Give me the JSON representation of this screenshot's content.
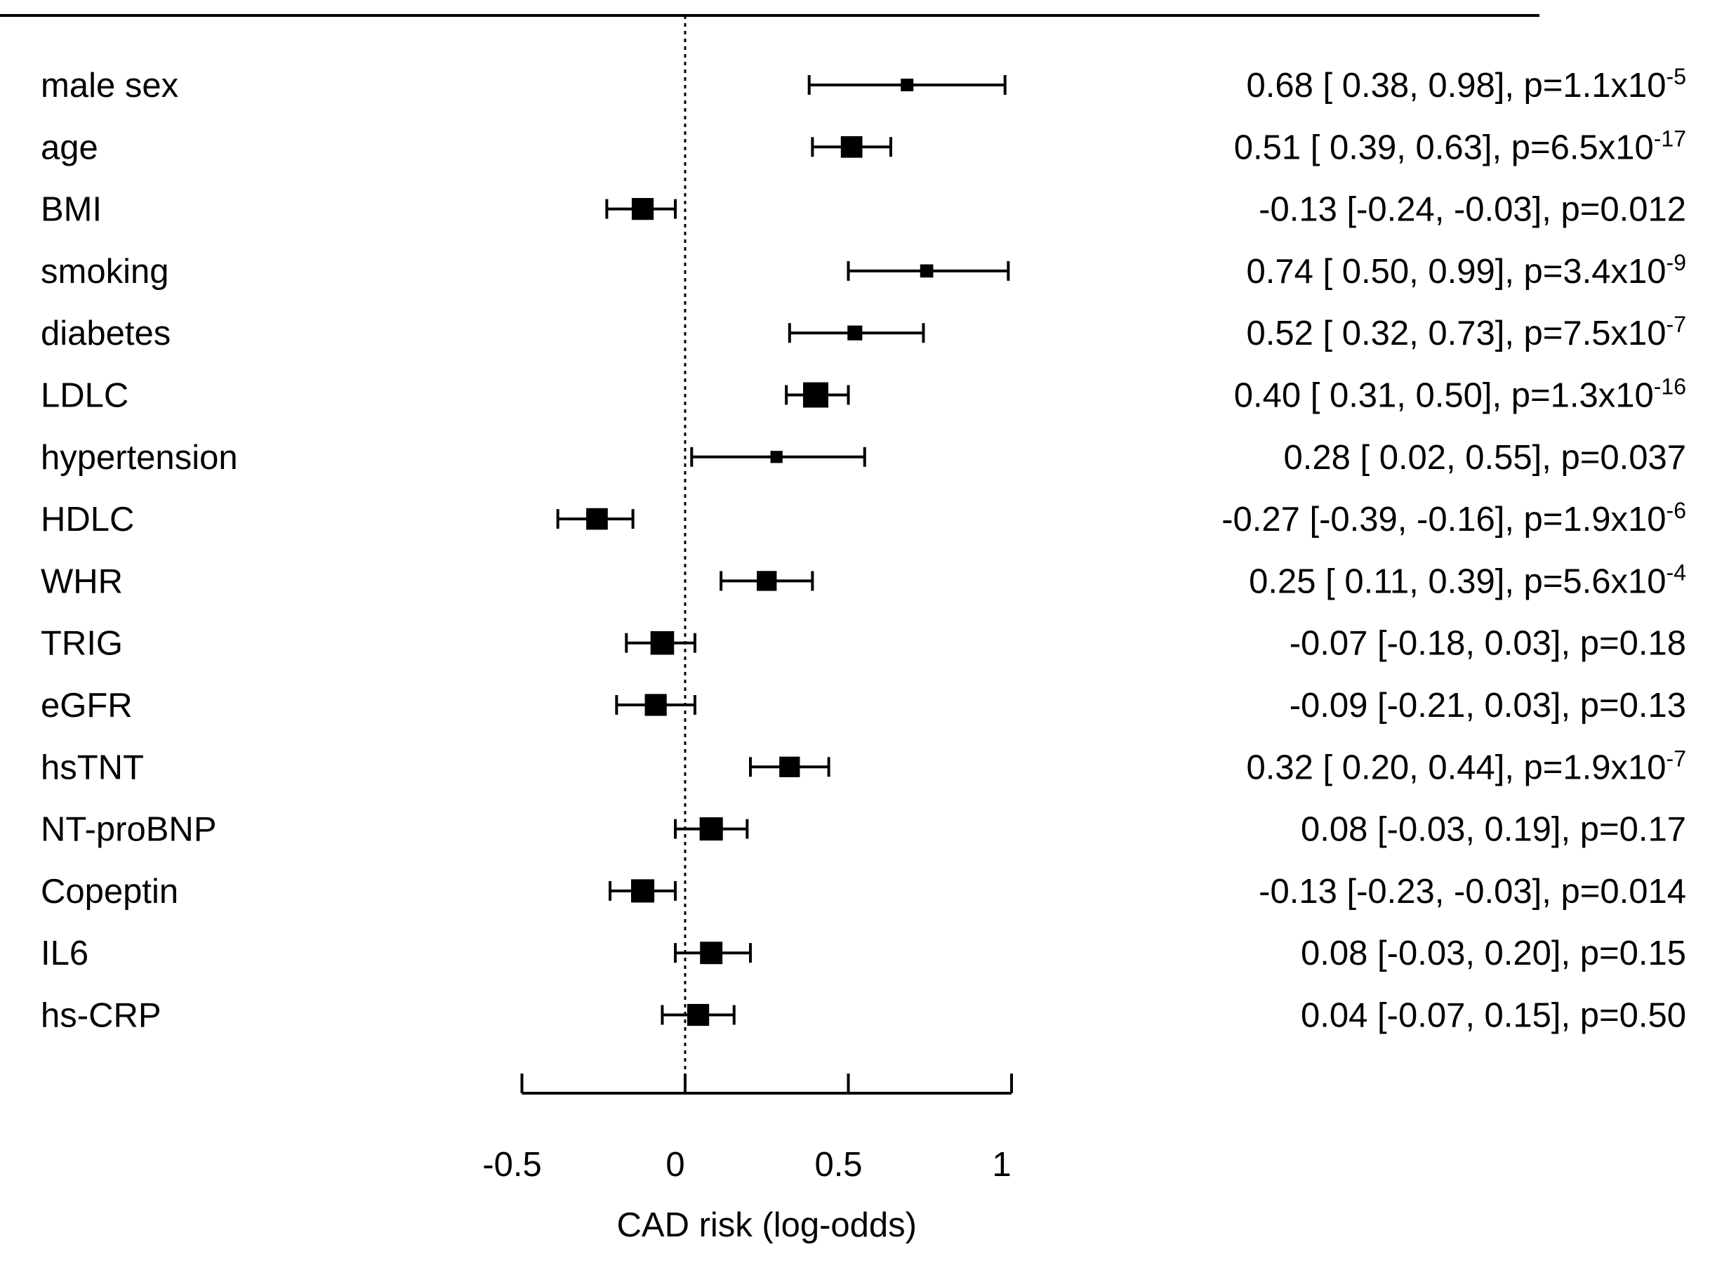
{
  "chart_data": {
    "type": "forest",
    "xlabel": "CAD risk (log-odds)",
    "xlim": [
      -0.5,
      1
    ],
    "xticks": [
      {
        "value": -0.5,
        "label": "-0.5"
      },
      {
        "value": 0,
        "label": "0"
      },
      {
        "value": 0.5,
        "label": "0.5"
      },
      {
        "value": 1,
        "label": "1"
      }
    ],
    "reference_line": 0,
    "rows": [
      {
        "label": "male sex",
        "estimate": 0.68,
        "lower": 0.38,
        "upper": 0.98,
        "weight": 0.25,
        "stat_text": "0.68 [ 0.38,  0.98], p=1.1x10",
        "p_exponent": "-5"
      },
      {
        "label": "age",
        "estimate": 0.51,
        "lower": 0.39,
        "upper": 0.63,
        "weight": 0.78,
        "stat_text": "0.51 [ 0.39,  0.63], p=6.5x10",
        "p_exponent": "-17"
      },
      {
        "label": "BMI",
        "estimate": -0.13,
        "lower": -0.24,
        "upper": -0.03,
        "weight": 0.8,
        "stat_text": "-0.13 [-0.24, -0.03], p=0.012",
        "p_exponent": ""
      },
      {
        "label": "smoking",
        "estimate": 0.74,
        "lower": 0.5,
        "upper": 0.99,
        "weight": 0.28,
        "stat_text": "0.74 [ 0.50,  0.99], p=3.4x10",
        "p_exponent": "-9"
      },
      {
        "label": "diabetes",
        "estimate": 0.52,
        "lower": 0.32,
        "upper": 0.73,
        "weight": 0.38,
        "stat_text": "0.52 [ 0.32,  0.73], p=7.5x10",
        "p_exponent": "-7"
      },
      {
        "label": "LDLC",
        "estimate": 0.4,
        "lower": 0.31,
        "upper": 0.5,
        "weight": 1.0,
        "stat_text": "0.40 [ 0.31,  0.50], p=1.3x10",
        "p_exponent": "-16"
      },
      {
        "label": "hypertension",
        "estimate": 0.28,
        "lower": 0.02,
        "upper": 0.55,
        "weight": 0.22,
        "stat_text": "0.28 [ 0.02,  0.55], p=0.037",
        "p_exponent": ""
      },
      {
        "label": "HDLC",
        "estimate": -0.27,
        "lower": -0.39,
        "upper": -0.16,
        "weight": 0.78,
        "stat_text": "-0.27 [-0.39, -0.16], p=1.9x10",
        "p_exponent": "-6"
      },
      {
        "label": "WHR",
        "estimate": 0.25,
        "lower": 0.11,
        "upper": 0.39,
        "weight": 0.68,
        "stat_text": "0.25 [ 0.11,  0.39], p=5.6x10",
        "p_exponent": "-4"
      },
      {
        "label": "TRIG",
        "estimate": -0.07,
        "lower": -0.18,
        "upper": 0.03,
        "weight": 0.9,
        "stat_text": "-0.07 [-0.18,  0.03], p=0.18",
        "p_exponent": ""
      },
      {
        "label": "eGFR",
        "estimate": -0.09,
        "lower": -0.21,
        "upper": 0.03,
        "weight": 0.8,
        "stat_text": "-0.09 [-0.21,  0.03], p=0.13",
        "p_exponent": ""
      },
      {
        "label": "hsTNT",
        "estimate": 0.32,
        "lower": 0.2,
        "upper": 0.44,
        "weight": 0.72,
        "stat_text": "0.32 [ 0.20,  0.44], p=1.9x10",
        "p_exponent": "-7"
      },
      {
        "label": "NT-proBNP",
        "estimate": 0.08,
        "lower": -0.03,
        "upper": 0.19,
        "weight": 0.88,
        "stat_text": "0.08 [-0.03,  0.19], p=0.17",
        "p_exponent": ""
      },
      {
        "label": "Copeptin",
        "estimate": -0.13,
        "lower": -0.23,
        "upper": -0.03,
        "weight": 0.88,
        "stat_text": "-0.13 [-0.23, -0.03], p=0.014",
        "p_exponent": ""
      },
      {
        "label": "IL6",
        "estimate": 0.08,
        "lower": -0.03,
        "upper": 0.2,
        "weight": 0.83,
        "stat_text": "0.08 [-0.03,  0.20], p=0.15",
        "p_exponent": ""
      },
      {
        "label": "hs-CRP",
        "estimate": 0.04,
        "lower": -0.07,
        "upper": 0.15,
        "weight": 0.8,
        "stat_text": "0.04 [-0.07,  0.15], p=0.50",
        "p_exponent": ""
      }
    ]
  }
}
